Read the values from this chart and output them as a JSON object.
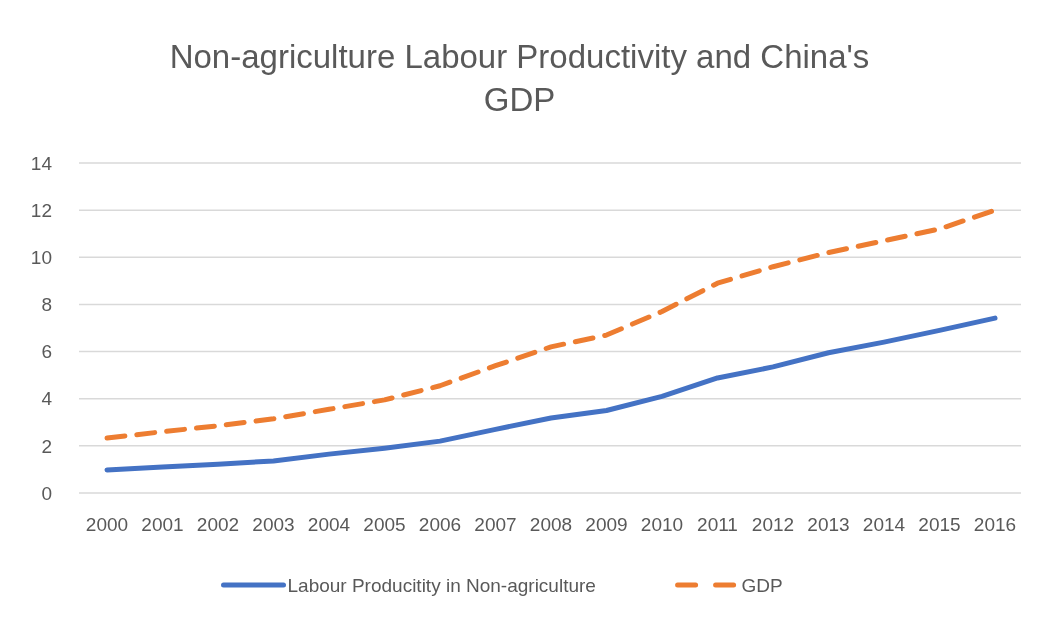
{
  "chart_data": {
    "type": "line",
    "title": "Non-agriculture Labour Productivity and China's GDP",
    "categories": [
      "2000",
      "2001",
      "2002",
      "2003",
      "2004",
      "2005",
      "2006",
      "2007",
      "2008",
      "2009",
      "2010",
      "2011",
      "2012",
      "2013",
      "2014",
      "2015",
      "2016"
    ],
    "series": [
      {
        "name": "Labour Producitity in Non-agriculture",
        "color": "#4472c4",
        "line_style": "solid",
        "values": [
          0.98,
          1.1,
          1.22,
          1.36,
          1.65,
          1.9,
          2.2,
          2.7,
          3.18,
          3.5,
          4.1,
          4.88,
          5.35,
          5.95,
          6.4,
          6.9,
          7.42
        ]
      },
      {
        "name": "GDP",
        "color": "#ed7d31",
        "line_style": "dashed",
        "values": [
          2.33,
          2.6,
          2.85,
          3.15,
          3.55,
          3.95,
          4.55,
          5.4,
          6.2,
          6.7,
          7.7,
          8.9,
          9.6,
          10.2,
          10.7,
          11.2,
          12.0
        ]
      }
    ],
    "ylim": [
      0,
      14
    ],
    "yticks": [
      0,
      2,
      4,
      6,
      8,
      10,
      12,
      14
    ],
    "grid": "y",
    "legend": "bottom",
    "marker": "none"
  }
}
